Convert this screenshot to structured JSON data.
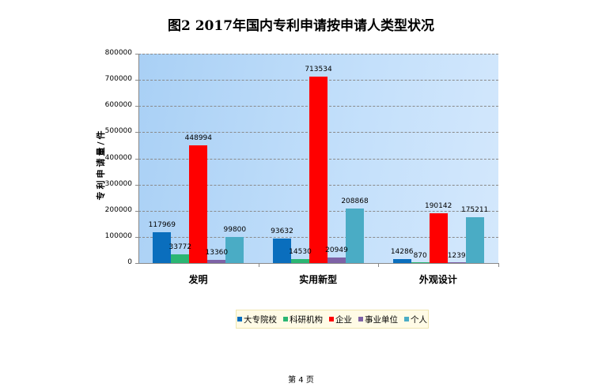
{
  "title": "图2   2017年国内专利申请按申请人类型状况",
  "footer": "第 4 页",
  "chart_data": {
    "type": "bar",
    "title": "图2   2017年国内专利申请按申请人类型状况",
    "xlabel": "",
    "ylabel": "专利申请量/件",
    "ylim": [
      0,
      800000
    ],
    "yticks": [
      "0",
      "100000",
      "200000",
      "300000",
      "400000",
      "500000",
      "600000",
      "700000",
      "800000"
    ],
    "grid": true,
    "legend_position": "bottom",
    "categories": [
      "发明",
      "实用新型",
      "外观设计"
    ],
    "series": [
      {
        "name": "大专院校",
        "color": "#0a6ebd",
        "values": [
          117969,
          93632,
          14286
        ]
      },
      {
        "name": "科研机构",
        "color": "#2bb673",
        "values": [
          33772,
          14530,
          870
        ]
      },
      {
        "name": "企业",
        "color": "#ff0000",
        "values": [
          448994,
          713534,
          190142
        ]
      },
      {
        "name": "事业单位",
        "color": "#7e62a6",
        "values": [
          13360,
          20949,
          1239
        ]
      },
      {
        "name": "个人",
        "color": "#4aacc5",
        "values": [
          99800,
          208868,
          175211
        ]
      }
    ]
  }
}
